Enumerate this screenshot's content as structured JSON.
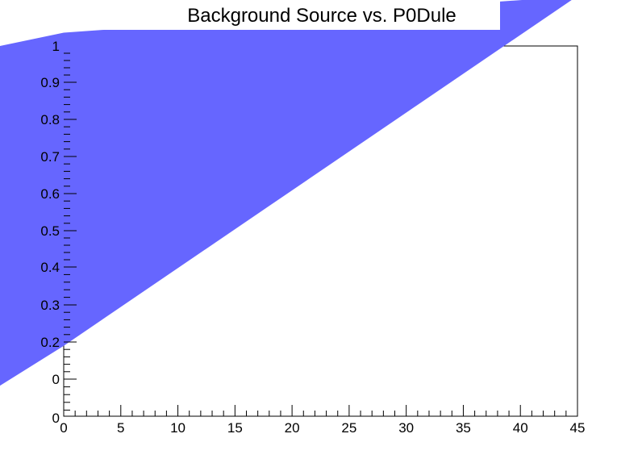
{
  "chart_data": {
    "type": "area",
    "title": "Background Source vs. P0Dule",
    "xlabel": "",
    "ylabel": "",
    "xlim": [
      0,
      45
    ],
    "x_ticks": [
      "0",
      "5",
      "10",
      "15",
      "20",
      "25",
      "30",
      "35",
      "40",
      "45"
    ],
    "y_ticks": [
      "0",
      "0",
      "0.2",
      "0.3",
      "0.4",
      "0.5",
      "0.6",
      "0.7",
      "0.8",
      "0.9",
      "1"
    ],
    "fill_color": "#6666ff",
    "series": [
      {
        "values": [
          {
            "x": -5.6,
            "y": -0.02
          },
          {
            "x": 0.0,
            "y": 0.1
          },
          {
            "x": 45.0,
            "y": 1.15
          },
          {
            "x": 0.0,
            "y": 1.04
          },
          {
            "x": -5.6,
            "y": 1.0
          }
        ]
      }
    ]
  }
}
